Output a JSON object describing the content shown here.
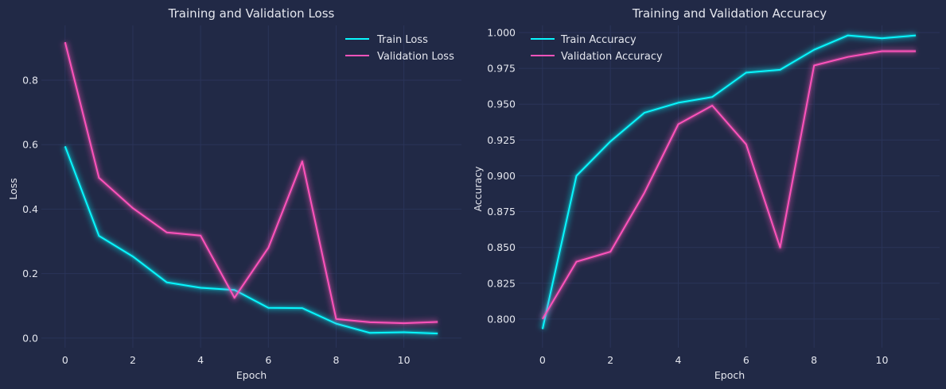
{
  "colors": {
    "background": "#212946",
    "grid": "#2A3459",
    "text": "#e4e6ee",
    "train": "#08F7FE",
    "validation": "#FE53BB"
  },
  "chart_data": [
    {
      "type": "line",
      "title": "Training and Validation Loss",
      "xlabel": "Epoch",
      "ylabel": "Loss",
      "xlim": [
        -0.7,
        11.7
      ],
      "ylim": [
        -0.03,
        0.97
      ],
      "xticks": [
        0,
        2,
        4,
        6,
        8,
        10
      ],
      "yticks": [
        0.0,
        0.2,
        0.4,
        0.6,
        0.8
      ],
      "ytick_labels": [
        "0.0",
        "0.2",
        "0.4",
        "0.6",
        "0.8"
      ],
      "grid": true,
      "legend_position": "top-right",
      "x": [
        0,
        1,
        2,
        3,
        4,
        5,
        6,
        7,
        8,
        9,
        10,
        11
      ],
      "series": [
        {
          "name": "Train Loss",
          "color": "#08F7FE",
          "values": [
            0.595,
            0.317,
            0.253,
            0.173,
            0.156,
            0.149,
            0.094,
            0.093,
            0.045,
            0.016,
            0.018,
            0.014
          ]
        },
        {
          "name": "Validation Loss",
          "color": "#FE53BB",
          "values": [
            0.918,
            0.497,
            0.403,
            0.328,
            0.318,
            0.125,
            0.28,
            0.548,
            0.059,
            0.049,
            0.046,
            0.05
          ]
        }
      ]
    },
    {
      "type": "line",
      "title": "Training and Validation Accuracy",
      "xlabel": "Epoch",
      "ylabel": "Accuracy",
      "xlim": [
        -0.7,
        11.7
      ],
      "ylim": [
        0.78,
        1.005
      ],
      "xticks": [
        0,
        2,
        4,
        6,
        8,
        10
      ],
      "yticks": [
        0.8,
        0.825,
        0.85,
        0.875,
        0.9,
        0.925,
        0.95,
        0.975,
        1.0
      ],
      "ytick_labels": [
        "0.800",
        "0.825",
        "0.850",
        "0.875",
        "0.900",
        "0.925",
        "0.950",
        "0.975",
        "1.000"
      ],
      "grid": true,
      "legend_position": "top-left",
      "x": [
        0,
        1,
        2,
        3,
        4,
        5,
        6,
        7,
        8,
        9,
        10,
        11
      ],
      "series": [
        {
          "name": "Train Accuracy",
          "color": "#08F7FE",
          "values": [
            0.793,
            0.9,
            0.924,
            0.944,
            0.951,
            0.955,
            0.972,
            0.974,
            0.988,
            0.998,
            0.996,
            0.998
          ]
        },
        {
          "name": "Validation Accuracy",
          "color": "#FE53BB",
          "values": [
            0.8,
            0.84,
            0.847,
            0.888,
            0.936,
            0.949,
            0.922,
            0.85,
            0.977,
            0.983,
            0.987,
            0.987
          ]
        }
      ]
    }
  ]
}
